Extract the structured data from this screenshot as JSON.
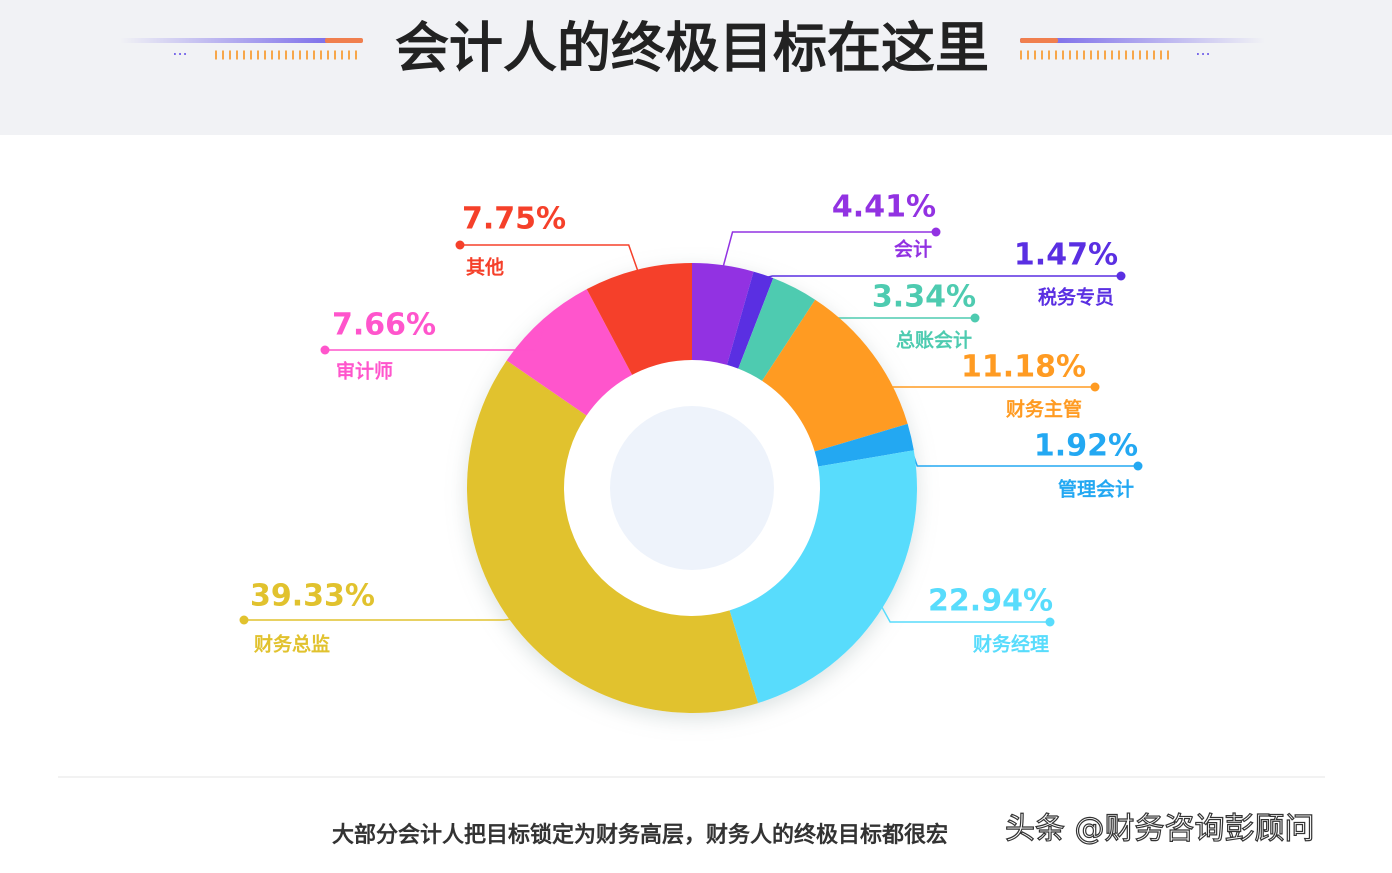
{
  "chart_data": {
    "type": "donut",
    "title": "会计人的终极目标在这里",
    "categories": [
      "会计",
      "税务专员",
      "总账会计",
      "财务主管",
      "管理会计",
      "财务经理",
      "财务总监",
      "审计师",
      "其他"
    ],
    "values": [
      4.41,
      1.47,
      3.34,
      11.18,
      1.92,
      22.94,
      39.33,
      7.66,
      7.75
    ],
    "value_labels": [
      "4.41%",
      "1.47%",
      "3.34%",
      "11.18%",
      "1.92%",
      "22.94%",
      "39.33%",
      "7.66%",
      "7.75%"
    ],
    "colors": [
      "#9232e2",
      "#5a2fe2",
      "#4ecbb0",
      "#ff9b22",
      "#23a8f2",
      "#58dcfc",
      "#e1c22e",
      "#ff55cc",
      "#f5402a"
    ],
    "caption": "大部分会计人把目标锁定为财务高层，财务人的终极目标都很宏",
    "watermark": "头条 @财务咨询彭顾问"
  }
}
